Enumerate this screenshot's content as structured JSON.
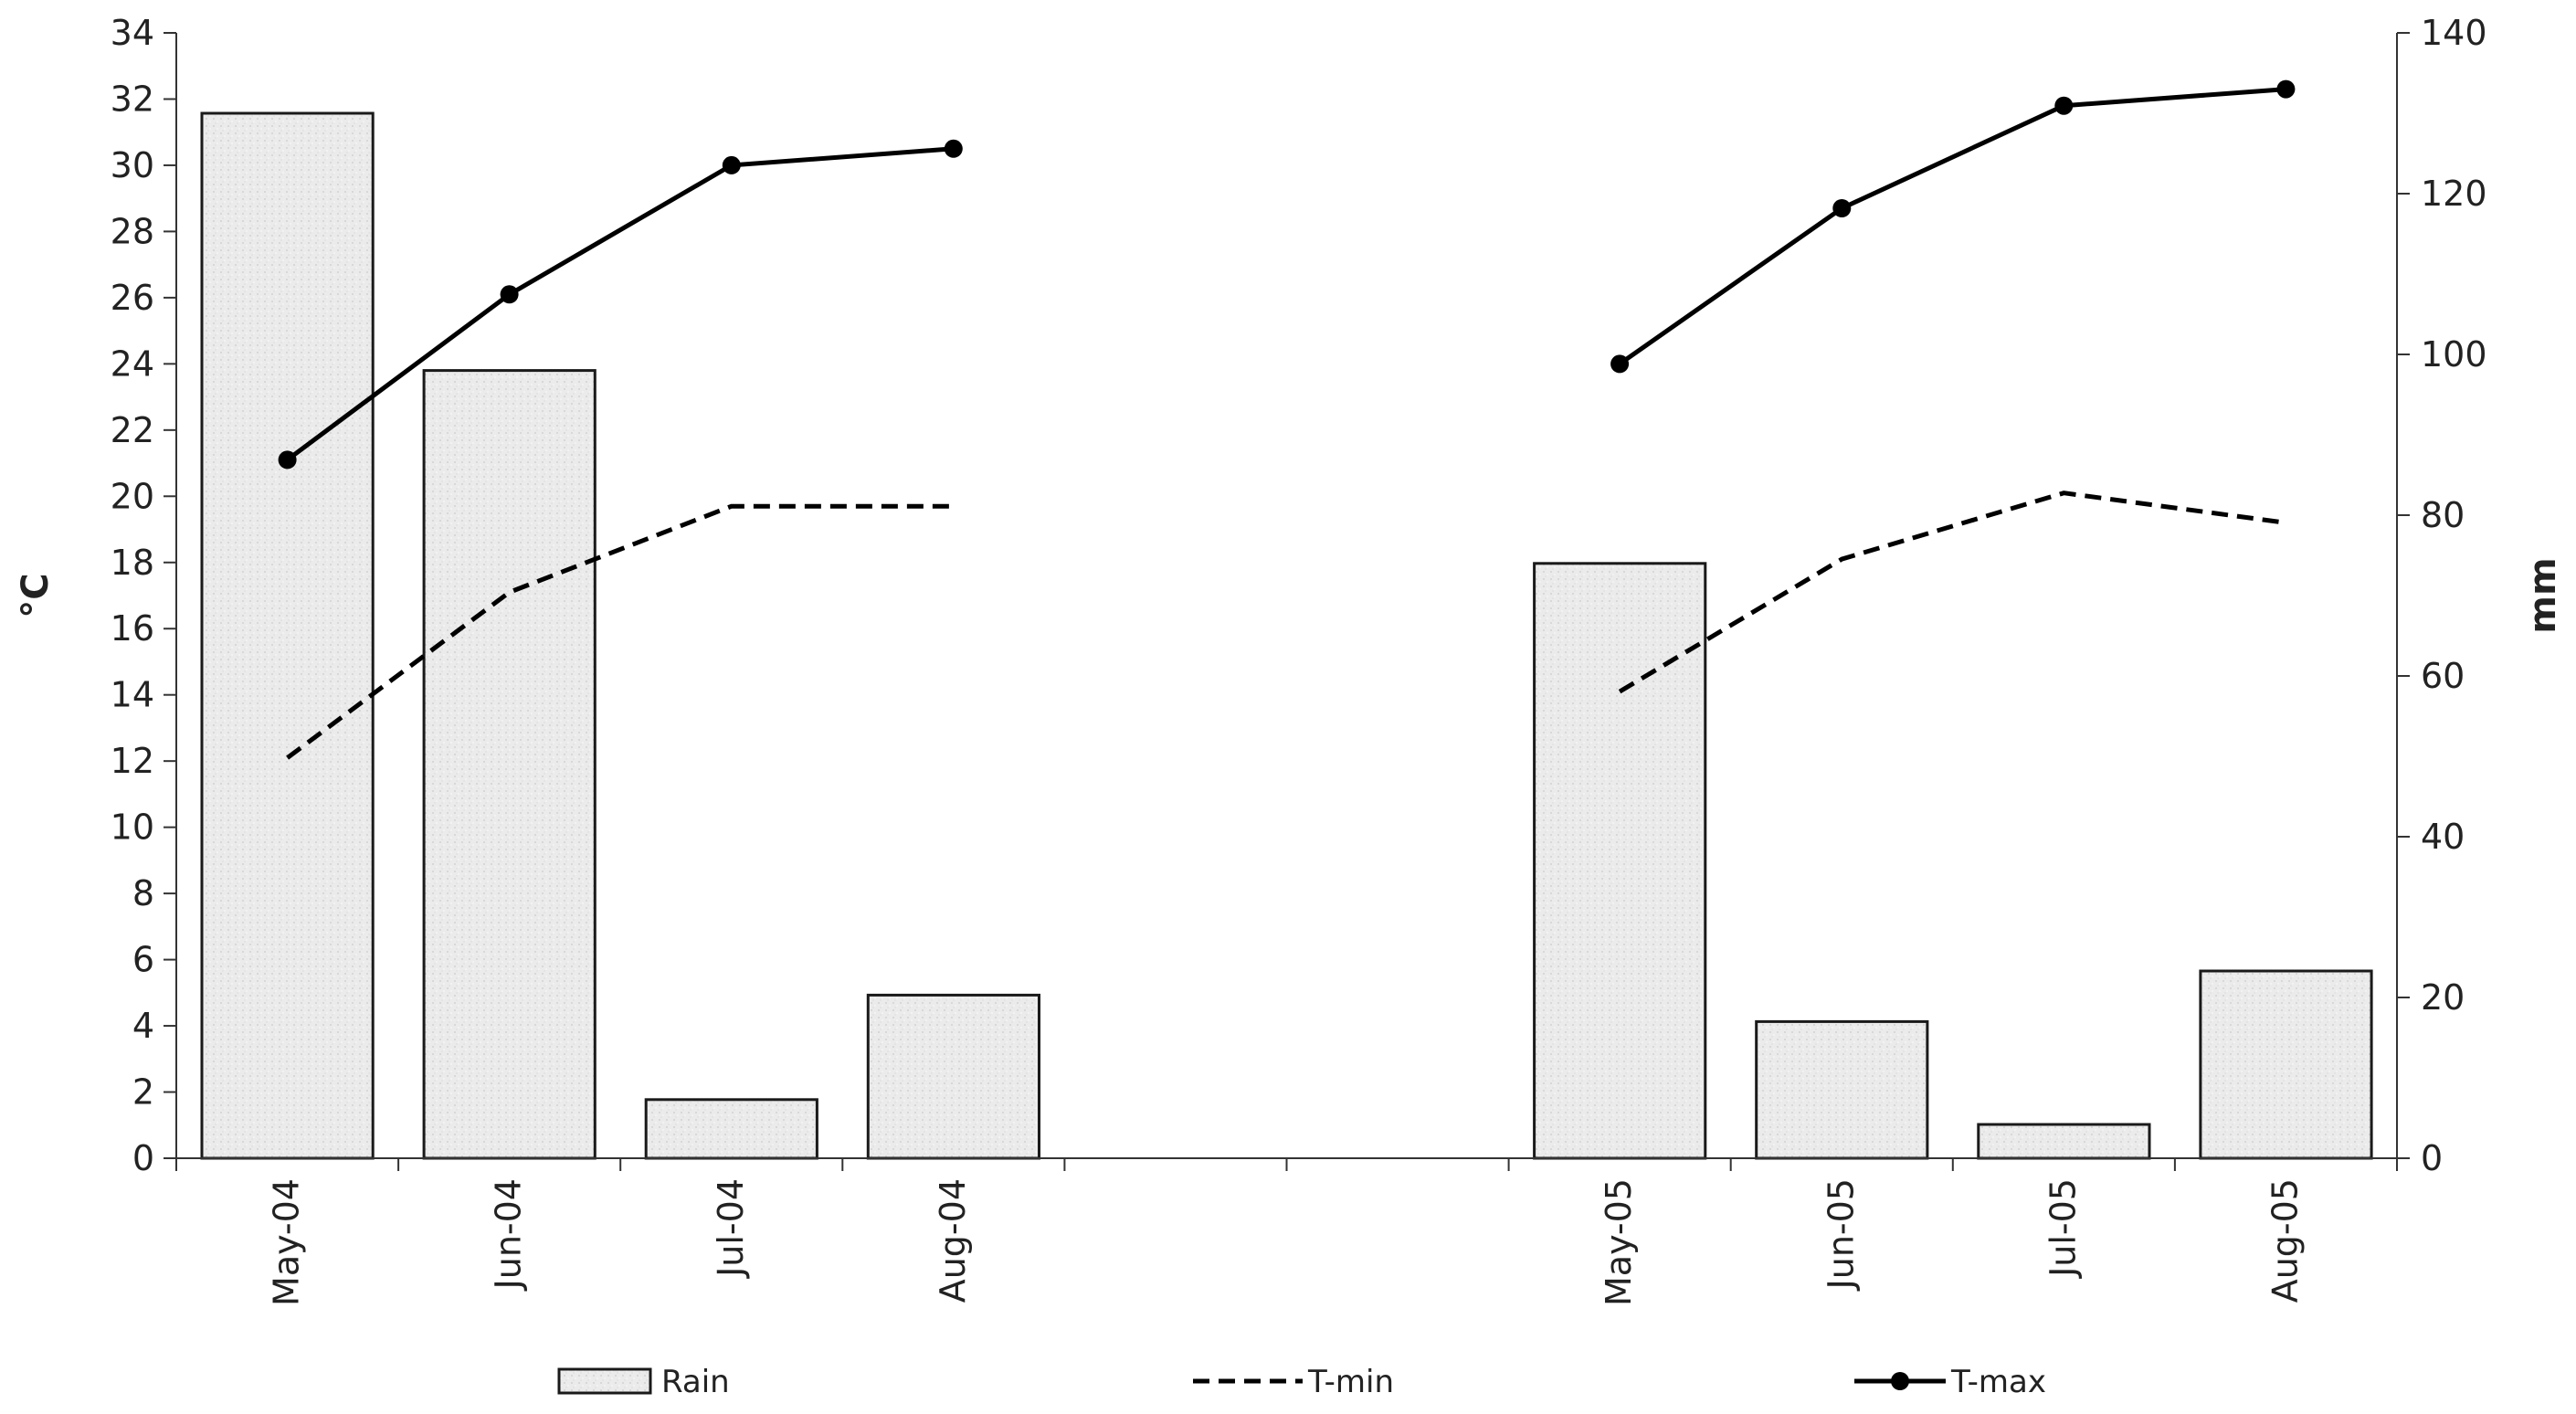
{
  "chart_data": {
    "type": "bar",
    "categories": [
      "May-04",
      "Jun-04",
      "Jul-04",
      "Aug-04",
      "",
      "",
      "May-05",
      "Jun-05",
      "Jul-05",
      "Aug-05"
    ],
    "series": [
      {
        "name": "Rain",
        "type": "bar",
        "axis": "right",
        "values": [
          130,
          98,
          7.3,
          20.3,
          null,
          null,
          74,
          17,
          4.2,
          23.3
        ]
      },
      {
        "name": "T-min",
        "type": "line",
        "style": "dashed",
        "axis": "left",
        "values": [
          12.1,
          17.1,
          19.7,
          19.7,
          null,
          null,
          14.1,
          18.1,
          20.1,
          19.2
        ]
      },
      {
        "name": "T-max",
        "type": "line",
        "style": "solid-markers",
        "axis": "left",
        "values": [
          21.1,
          26.1,
          30.0,
          30.5,
          null,
          null,
          24.0,
          28.7,
          31.8,
          32.3
        ]
      }
    ],
    "ylabel": "°C",
    "y2label": "mm",
    "ylim": [
      0,
      34
    ],
    "y2lim": [
      0,
      140
    ],
    "yticks": [
      0,
      2,
      4,
      6,
      8,
      10,
      12,
      14,
      16,
      18,
      20,
      22,
      24,
      26,
      28,
      30,
      32,
      34
    ],
    "y2ticks": [
      0,
      20,
      40,
      60,
      80,
      100,
      120,
      140
    ],
    "grid": false,
    "legend_position": "bottom",
    "colors": {
      "bar_fill": "#ececec",
      "bar_stroke": "#1a1a1a",
      "line": "#000000"
    }
  }
}
